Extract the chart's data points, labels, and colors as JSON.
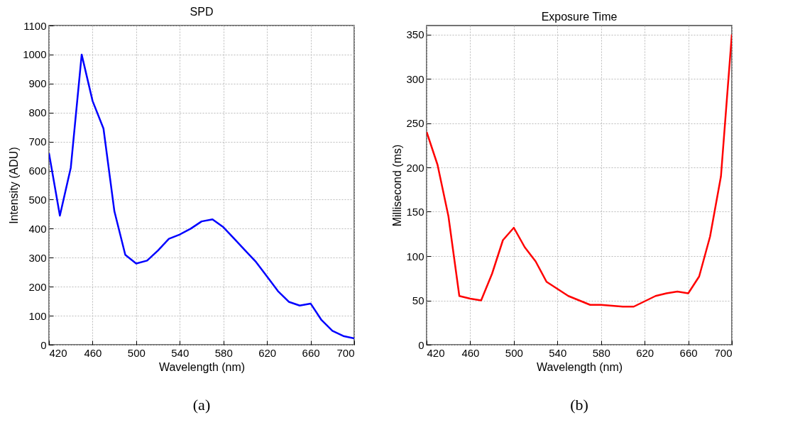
{
  "chart_data": [
    {
      "type": "line",
      "title": "SPD",
      "xlabel": "Wavelength (nm)",
      "ylabel": "Intensity (ADU)",
      "x": [
        420,
        430,
        440,
        450,
        460,
        470,
        480,
        490,
        500,
        510,
        520,
        530,
        540,
        550,
        560,
        570,
        580,
        590,
        600,
        610,
        620,
        630,
        640,
        650,
        660,
        670,
        680,
        690,
        700
      ],
      "series": [
        {
          "color": "#0000ff",
          "values": [
            660,
            445,
            610,
            1000,
            840,
            745,
            460,
            310,
            280,
            290,
            325,
            365,
            380,
            400,
            425,
            432,
            405,
            365,
            325,
            285,
            235,
            185,
            148,
            135,
            142,
            85,
            48,
            30,
            22
          ]
        }
      ],
      "xlim": [
        420,
        700
      ],
      "xticks": [
        420,
        460,
        500,
        540,
        580,
        620,
        660,
        700
      ],
      "ylim": [
        0,
        1100
      ],
      "yticks": [
        0,
        100,
        200,
        300,
        400,
        500,
        600,
        700,
        800,
        900,
        1000,
        1100
      ],
      "grid": true,
      "annotations": [
        "(a)"
      ]
    },
    {
      "type": "line",
      "title": "Exposure Time",
      "xlabel": "Wavelength (nm)",
      "ylabel": "Millisecond (ms)",
      "x": [
        420,
        430,
        440,
        450,
        460,
        470,
        480,
        490,
        500,
        510,
        520,
        530,
        540,
        550,
        560,
        570,
        580,
        590,
        600,
        610,
        620,
        630,
        640,
        650,
        660,
        670,
        680,
        690,
        700
      ],
      "series": [
        {
          "color": "#ff0000",
          "values": [
            240,
            203,
            145,
            55,
            52,
            50,
            80,
            118,
            132,
            110,
            94,
            71,
            63,
            55,
            50,
            45,
            45,
            44,
            43,
            43,
            49,
            55,
            58,
            60,
            58,
            77,
            122,
            190,
            350
          ]
        }
      ],
      "xlim": [
        420,
        700
      ],
      "xticks": [
        420,
        460,
        500,
        540,
        580,
        620,
        660,
        700
      ],
      "ylim": [
        0,
        360
      ],
      "yticks": [
        0,
        50,
        100,
        150,
        200,
        250,
        300,
        350
      ],
      "grid": true,
      "annotations": [
        "(b)"
      ]
    }
  ]
}
